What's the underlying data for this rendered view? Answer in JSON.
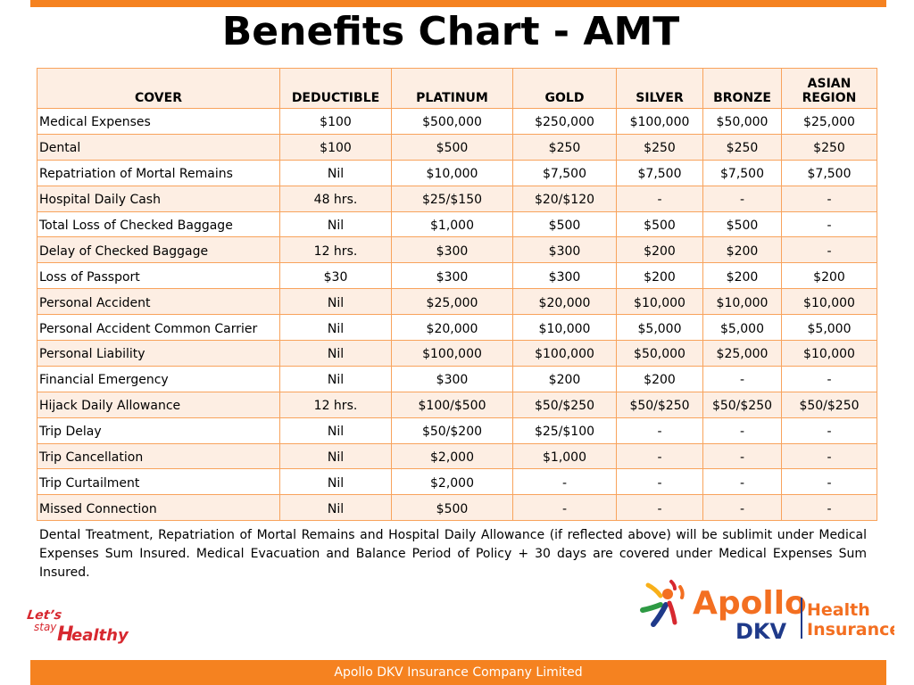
{
  "title": "Benefits Chart - AMT",
  "table": {
    "headers": [
      "COVER",
      "DEDUCTIBLE",
      "PLATINUM",
      "GOLD",
      "SILVER",
      "BRONZE",
      "ASIAN REGION"
    ],
    "rows": [
      [
        "Medical Expenses",
        "$100",
        "$500,000",
        "$250,000",
        "$100,000",
        "$50,000",
        "$25,000"
      ],
      [
        "Dental",
        "$100",
        "$500",
        "$250",
        "$250",
        "$250",
        "$250"
      ],
      [
        "Repatriation of Mortal Remains",
        "Nil",
        "$10,000",
        "$7,500",
        "$7,500",
        "$7,500",
        "$7,500"
      ],
      [
        "Hospital Daily Cash",
        "48 hrs.",
        "$25/$150",
        "$20/$120",
        "-",
        "-",
        "-"
      ],
      [
        "Total Loss of Checked Baggage",
        "Nil",
        "$1,000",
        "$500",
        "$500",
        "$500",
        "-"
      ],
      [
        "Delay of Checked Baggage",
        "12 hrs.",
        "$300",
        "$300",
        "$200",
        "$200",
        "-"
      ],
      [
        "Loss of Passport",
        "$30",
        "$300",
        "$300",
        "$200",
        "$200",
        "$200"
      ],
      [
        "Personal Accident",
        "Nil",
        "$25,000",
        "$20,000",
        "$10,000",
        "$10,000",
        "$10,000"
      ],
      [
        "Personal Accident Common Carrier",
        "Nil",
        "$20,000",
        "$10,000",
        "$5,000",
        "$5,000",
        "$5,000"
      ],
      [
        "Personal Liability",
        "Nil",
        "$100,000",
        "$100,000",
        "$50,000",
        "$25,000",
        "$10,000"
      ],
      [
        "Financial Emergency",
        "Nil",
        "$300",
        "$200",
        "$200",
        "-",
        "-"
      ],
      [
        "Hijack Daily Allowance",
        "12 hrs.",
        "$100/$500",
        "$50/$250",
        "$50/$250",
        "$50/$250",
        "$50/$250"
      ],
      [
        "Trip Delay",
        "Nil",
        "$50/$200",
        "$25/$100",
        "-",
        "-",
        "-"
      ],
      [
        "Trip Cancellation",
        "Nil",
        "$2,000",
        "$1,000",
        "-",
        "-",
        "-"
      ],
      [
        "Trip Curtailment",
        "Nil",
        "$2,000",
        "-",
        "-",
        "-",
        "-"
      ],
      [
        "Missed  Connection",
        "Nil",
        "$500",
        "-",
        "-",
        "-",
        "-"
      ]
    ]
  },
  "note": "Dental Treatment, Repatriation of Mortal Remains and Hospital Daily Allowance (if reflected above) will be sublimit under Medical Expenses Sum Insured. Medical Evacuation and Balance Period of Policy + 30 days are covered under Medical Expenses Sum Insured.",
  "logos": {
    "lets_stay_healthy": "Let's stay Healthy",
    "apollo_name": "Apollo",
    "apollo_sub": "DKV",
    "apollo_health": "Health",
    "apollo_insurance": "Insurance"
  },
  "footer": "Apollo DKV Insurance Company Limited",
  "colors": {
    "accent": "#f58220",
    "row_alt": "#fdeee3",
    "border": "#f8a35c",
    "apollo_orange": "#f36f21",
    "dkv_blue": "#1f3a8a",
    "logo_red": "#d7282f"
  }
}
